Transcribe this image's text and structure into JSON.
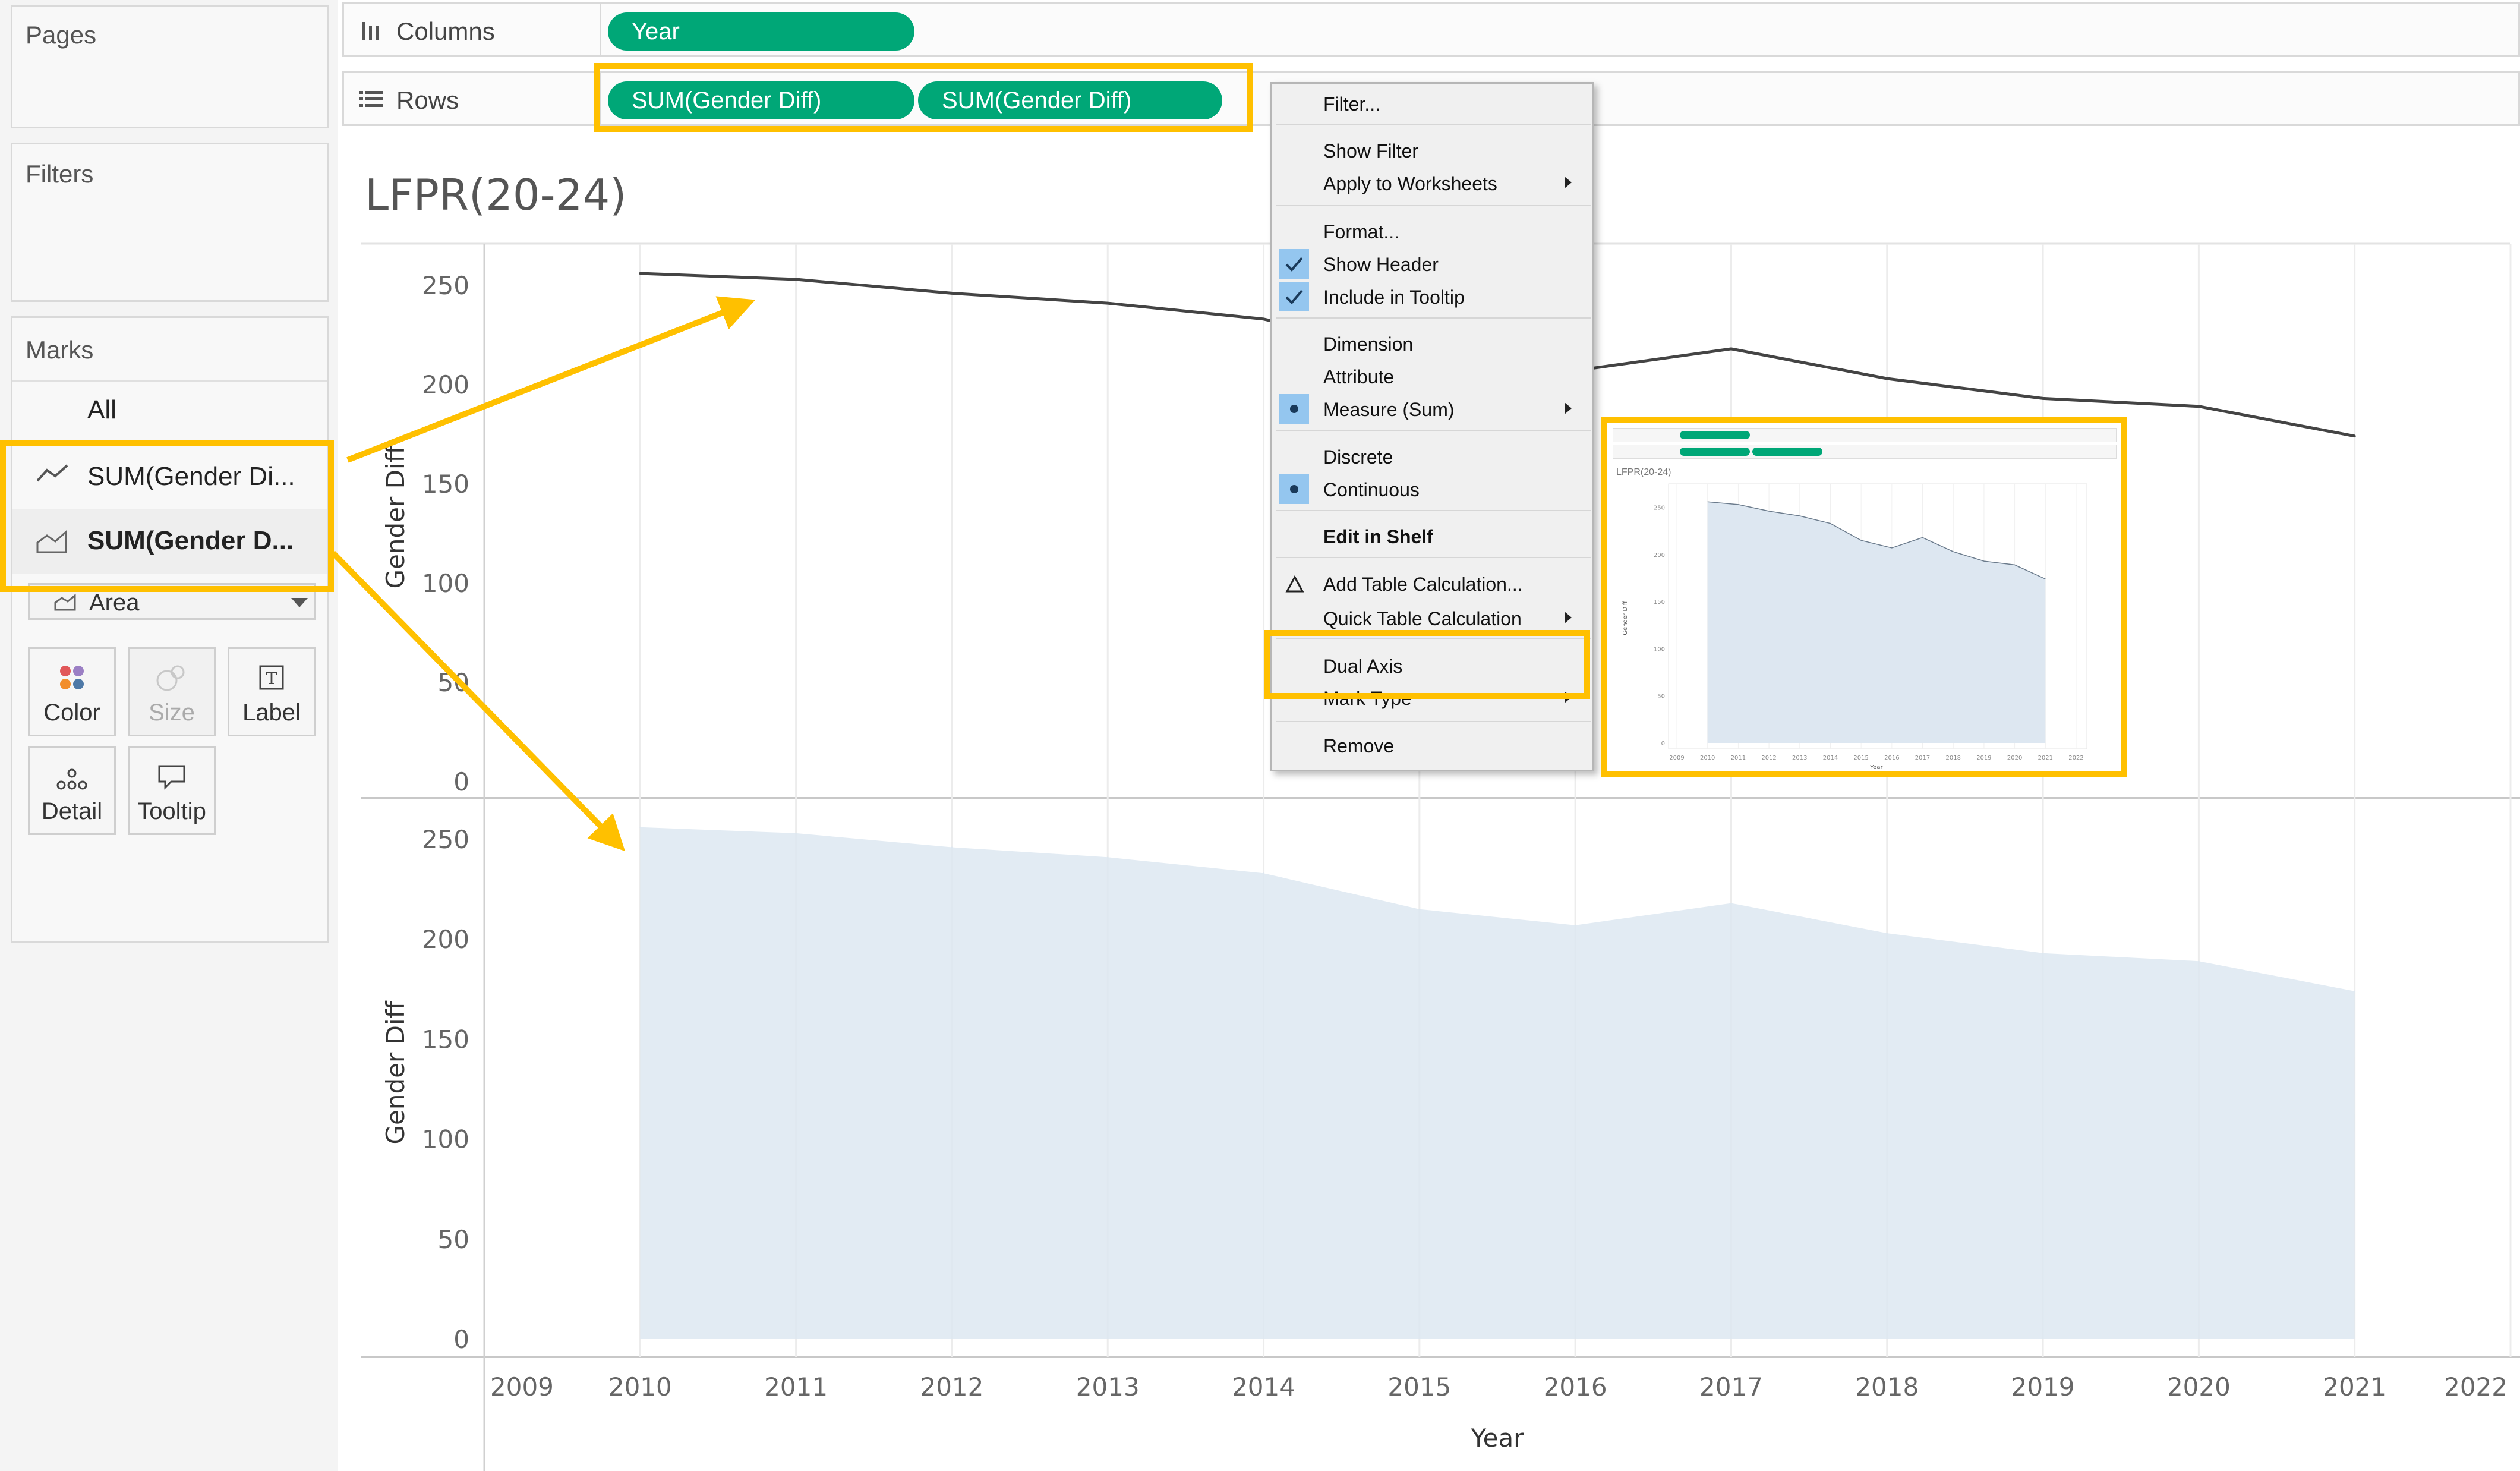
{
  "panels": {
    "pages": "Pages",
    "filters": "Filters",
    "marks": "Marks"
  },
  "shelves": {
    "columns_label": "Columns",
    "columns_pill": "Year",
    "rows_label": "Rows",
    "rows_pills": [
      "SUM(Gender Diff)",
      "SUM(Gender Diff)"
    ]
  },
  "marks": {
    "all": "All",
    "items": [
      "SUM(Gender Di...",
      "SUM(Gender D..."
    ],
    "mark_type": "Area",
    "buttons": [
      "Color",
      "Size",
      "Label",
      "Detail",
      "Tooltip"
    ]
  },
  "worksheet": {
    "title": "LFPR(20-24)"
  },
  "context_menu": {
    "items": [
      "Filter...",
      "Show Filter",
      "Apply to Worksheets",
      "Format...",
      "Show Header",
      "Include in Tooltip",
      "Dimension",
      "Attribute",
      "Measure (Sum)",
      "Discrete",
      "Continuous",
      "Edit in Shelf",
      "Add Table Calculation...",
      "Quick Table Calculation",
      "Dual Axis",
      "Mark Type",
      "Remove"
    ]
  },
  "thumbnail": {
    "title": "LFPR(20-24)"
  },
  "chart_data": {
    "type": "line",
    "title": "LFPR(20-24)",
    "xlabel": "Year",
    "ylabel": "Gender Diff",
    "x_axis_ticks": [
      2009,
      2010,
      2011,
      2012,
      2013,
      2014,
      2015,
      2016,
      2017,
      2018,
      2019,
      2020,
      2021,
      2022
    ],
    "xlim": [
      2009,
      2022
    ],
    "ylim": [
      0,
      270
    ],
    "y_ticks": [
      0,
      50,
      100,
      150,
      200,
      250
    ],
    "x": [
      2010,
      2011,
      2012,
      2013,
      2014,
      2015,
      2016,
      2017,
      2018,
      2019,
      2020,
      2021
    ],
    "series": [
      {
        "values": [
          256,
          253,
          246,
          241,
          233,
          215,
          207,
          218,
          203,
          193,
          189,
          174
        ],
        "mark": "line",
        "color": "#444444"
      },
      {
        "values": [
          256,
          253,
          246,
          241,
          233,
          215,
          207,
          218,
          203,
          193,
          189,
          174
        ],
        "mark": "area",
        "color": "#dde7f1"
      }
    ]
  },
  "colors": {
    "pill": "#00a777",
    "highlight": "#ffc000",
    "area_fill": "#dde7f1",
    "line": "#444444",
    "menu_check": "#94c6ef"
  }
}
